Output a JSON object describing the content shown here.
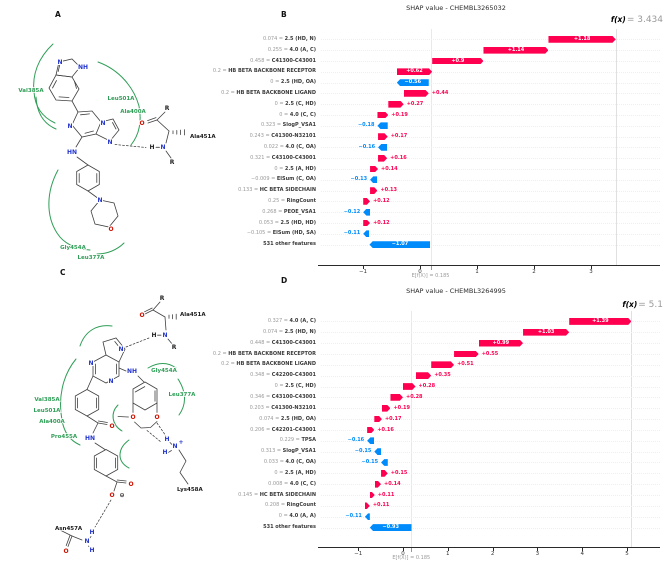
{
  "panel_labels": {
    "a": "A",
    "b": "B",
    "c": "C",
    "d": "D"
  },
  "panel_a": {
    "residues_green": [
      "Val385A",
      "Leu501A",
      "Ala400A",
      "Gly454A",
      "Leu377A"
    ],
    "residues_black": [
      "Ala451A"
    ],
    "atoms": [
      "N",
      "NH",
      "N",
      "N",
      "N",
      "HN",
      "N",
      "O",
      "R",
      "O",
      "H",
      "N",
      "R"
    ]
  },
  "panel_c": {
    "residues_green": [
      "Val385A",
      "Leu501A",
      "Ala400A",
      "Pro455A",
      "Gly454A",
      "Leu377A"
    ],
    "residues_black": [
      "Ala451A",
      "Lys458A",
      "Asn457A"
    ],
    "atoms": [
      "R",
      "O",
      "H",
      "N",
      "R",
      "N",
      "N",
      "N",
      "NH",
      "O",
      "HN",
      "O",
      "O",
      "⊖",
      "O",
      "O",
      "H",
      "N",
      "+",
      "H",
      "H",
      "N",
      "H",
      "O"
    ]
  },
  "chart_data": [
    {
      "type": "waterfall",
      "panel": "B",
      "title": "SHAP value - CHEMBL3265032",
      "fx_name": "f(x)",
      "fx_text": "= 3.434",
      "fx_value": 3.434,
      "base_value": 0.185,
      "base_label": "E[f(X)] = 0.185",
      "positive_color": "#ff0051",
      "negative_color": "#008bfb",
      "xticks": [
        -1,
        0,
        1,
        2,
        3
      ],
      "xtick_labels": [
        "−1",
        "0",
        "1",
        "2",
        "3"
      ],
      "rows": [
        {
          "value_text": "0.074 = ",
          "feature": "2.5 (HD, N)",
          "shap": 1.18,
          "shap_label": "+1.18"
        },
        {
          "value_text": "0.255 = ",
          "feature": "4.0 (A, C)",
          "shap": 1.14,
          "shap_label": "+1.14"
        },
        {
          "value_text": "0.458 = ",
          "feature": "C41300-C43001",
          "shap": 0.9,
          "shap_label": "+0.9"
        },
        {
          "value_text": "0.2 = ",
          "feature": "HB BETA BACKBONE RECEPTOR",
          "shap": 0.62,
          "shap_label": "+0.62"
        },
        {
          "value_text": "0 = ",
          "feature": "2.5 (HD, OA)",
          "shap": -0.56,
          "shap_label": "−0.56"
        },
        {
          "value_text": "0.2 = ",
          "feature": "HB BETA BACKBONE LIGAND",
          "shap": 0.44,
          "shap_label": "+0.44"
        },
        {
          "value_text": "0 = ",
          "feature": "2.5 (C, HD)",
          "shap": 0.27,
          "shap_label": "+0.27"
        },
        {
          "value_text": "0 = ",
          "feature": "4.0 (C, C)",
          "shap": 0.19,
          "shap_label": "+0.19"
        },
        {
          "value_text": "0.323 = ",
          "feature": "SlogP_VSA1",
          "shap": -0.18,
          "shap_label": "−0.18"
        },
        {
          "value_text": "0.243 = ",
          "feature": "C41300-N32101",
          "shap": 0.17,
          "shap_label": "+0.17"
        },
        {
          "value_text": "0.022 = ",
          "feature": "4.0 (C, OA)",
          "shap": -0.16,
          "shap_label": "−0.16"
        },
        {
          "value_text": "0.321 = ",
          "feature": "C43100-C43001",
          "shap": 0.16,
          "shap_label": "+0.16"
        },
        {
          "value_text": "0 = ",
          "feature": "2.5 (A, HD)",
          "shap": 0.14,
          "shap_label": "+0.14"
        },
        {
          "value_text": "−0.009 = ",
          "feature": "ElSum (C, OA)",
          "shap": -0.13,
          "shap_label": "−0.13"
        },
        {
          "value_text": "0.133 = ",
          "feature": "HC BETA SIDECHAIN",
          "shap": 0.13,
          "shap_label": "+0.13"
        },
        {
          "value_text": "0.25 = ",
          "feature": "RingCount",
          "shap": 0.12,
          "shap_label": "+0.12"
        },
        {
          "value_text": "0.268 = ",
          "feature": "PEOE_VSA1",
          "shap": -0.12,
          "shap_label": "−0.12"
        },
        {
          "value_text": "0.053 = ",
          "feature": "2.5 (HD, HD)",
          "shap": 0.12,
          "shap_label": "+0.12"
        },
        {
          "value_text": "−0.105 = ",
          "feature": "ElSum (HD, SA)",
          "shap": -0.11,
          "shap_label": "−0.11"
        },
        {
          "value_text": "",
          "feature": "531 other features",
          "shap": -1.07,
          "shap_label": "−1.07"
        }
      ]
    },
    {
      "type": "waterfall",
      "panel": "D",
      "title": "SHAP value - CHEMBL3264995",
      "fx_name": "f(x)",
      "fx_text": "= 5.1",
      "fx_value": 5.1,
      "base_value": 0.185,
      "base_label": "E[f(X)] = 0.185",
      "positive_color": "#ff0051",
      "negative_color": "#008bfb",
      "xticks": [
        -1,
        0,
        1,
        2,
        3,
        4,
        5
      ],
      "xtick_labels": [
        "−1",
        "0",
        "1",
        "2",
        "3",
        "4",
        "5"
      ],
      "rows": [
        {
          "value_text": "0.327 = ",
          "feature": "4.0 (A, C)",
          "shap": 1.39,
          "shap_label": "+1.39"
        },
        {
          "value_text": "0.074 = ",
          "feature": "2.5 (HD, N)",
          "shap": 1.03,
          "shap_label": "+1.03"
        },
        {
          "value_text": "0.448 = ",
          "feature": "C41300-C43001",
          "shap": 0.99,
          "shap_label": "+0.99"
        },
        {
          "value_text": "0.2 = ",
          "feature": "HB BETA BACKBONE RECEPTOR",
          "shap": 0.55,
          "shap_label": "+0.55"
        },
        {
          "value_text": "0.2 = ",
          "feature": "HB BETA BACKBONE LIGAND",
          "shap": 0.51,
          "shap_label": "+0.51"
        },
        {
          "value_text": "0.348 = ",
          "feature": "C42200-C43001",
          "shap": 0.35,
          "shap_label": "+0.35"
        },
        {
          "value_text": "0 = ",
          "feature": "2.5 (C, HD)",
          "shap": 0.28,
          "shap_label": "+0.28"
        },
        {
          "value_text": "0.346 = ",
          "feature": "C43100-C43001",
          "shap": 0.28,
          "shap_label": "+0.28"
        },
        {
          "value_text": "0.203 = ",
          "feature": "C41300-N32101",
          "shap": 0.19,
          "shap_label": "+0.19"
        },
        {
          "value_text": "0.074 = ",
          "feature": "2.5 (HD, OA)",
          "shap": 0.17,
          "shap_label": "+0.17"
        },
        {
          "value_text": "0.206 = ",
          "feature": "C42201-C43001",
          "shap": 0.16,
          "shap_label": "+0.16"
        },
        {
          "value_text": "0.229 = ",
          "feature": "TPSA",
          "shap": -0.16,
          "shap_label": "−0.16"
        },
        {
          "value_text": "0.313 = ",
          "feature": "SlogP_VSA1",
          "shap": -0.15,
          "shap_label": "−0.15"
        },
        {
          "value_text": "0.033 = ",
          "feature": "4.0 (C, OA)",
          "shap": -0.15,
          "shap_label": "−0.15"
        },
        {
          "value_text": "0 = ",
          "feature": "2.5 (A, HD)",
          "shap": 0.15,
          "shap_label": "+0.15"
        },
        {
          "value_text": "0.008 = ",
          "feature": "4.0 (C, C)",
          "shap": 0.14,
          "shap_label": "+0.14"
        },
        {
          "value_text": "0.145 = ",
          "feature": "HC BETA SIDECHAIN",
          "shap": 0.11,
          "shap_label": "+0.11"
        },
        {
          "value_text": "0.208 = ",
          "feature": "RingCount",
          "shap": 0.11,
          "shap_label": "+0.11"
        },
        {
          "value_text": "0 = ",
          "feature": "4.0 (A, A)",
          "shap": -0.11,
          "shap_label": "−0.11"
        },
        {
          "value_text": "",
          "feature": "531 other features",
          "shap": -0.93,
          "shap_label": "−0.93"
        }
      ]
    }
  ]
}
